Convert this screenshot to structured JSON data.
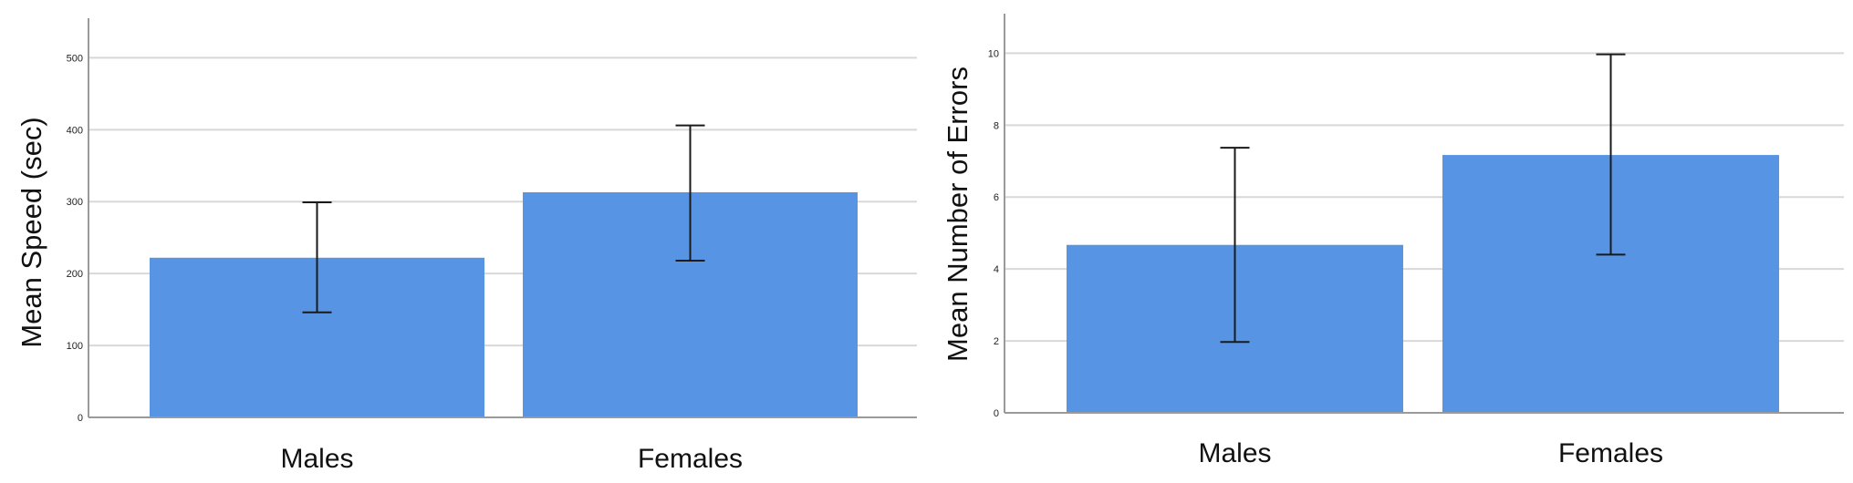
{
  "chart_data": [
    {
      "type": "bar",
      "ylabel": "Mean Speed (sec)",
      "xlabel": "",
      "categories": [
        "Males",
        "Females"
      ],
      "values": [
        222,
        313
      ],
      "error_bars": [
        {
          "low": 146,
          "high": 299
        },
        {
          "low": 218,
          "high": 406
        }
      ],
      "ylim": [
        0,
        555
      ],
      "yticks": [
        0,
        100,
        200,
        300,
        400,
        500
      ],
      "grid": true,
      "legend": "none",
      "bar_color": "#5794e3",
      "grid_color": "#d8d8d8",
      "axis_color": "#9a9a9a",
      "error_bar_color": "#1a1a1a"
    },
    {
      "type": "bar",
      "ylabel": "Mean Number of Errors",
      "xlabel": "",
      "categories": [
        "Males",
        "Females"
      ],
      "values": [
        4.67,
        7.17
      ],
      "error_bars": [
        {
          "low": 1.97,
          "high": 7.37
        },
        {
          "low": 4.4,
          "high": 9.97
        }
      ],
      "ylim": [
        0,
        11.1
      ],
      "yticks": [
        0,
        2,
        4,
        6,
        8,
        10
      ],
      "grid": true,
      "legend": "none",
      "bar_color": "#5794e3",
      "grid_color": "#d8d8d8",
      "axis_color": "#9a9a9a",
      "error_bar_color": "#1a1a1a"
    }
  ]
}
